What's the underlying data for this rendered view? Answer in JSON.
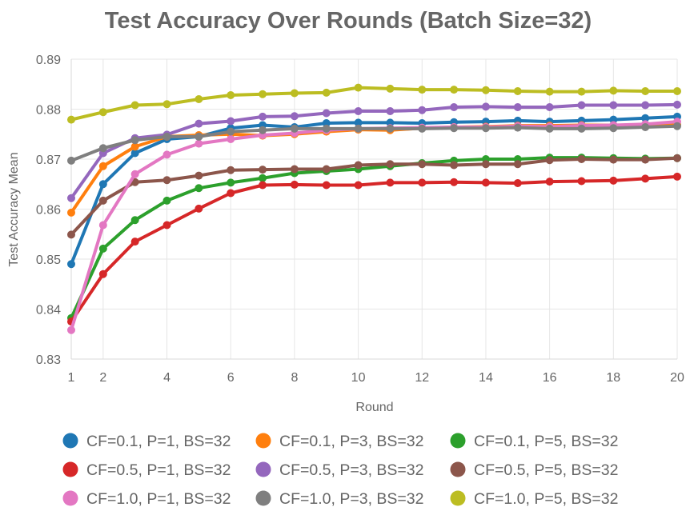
{
  "chart_data": {
    "type": "line",
    "title": "Test Accuracy Over Rounds (Batch Size=32)",
    "xlabel": "Round",
    "ylabel": "Test Accuracy Mean",
    "xlim": [
      1,
      20
    ],
    "ylim": [
      0.83,
      0.89
    ],
    "xticks": [
      1,
      2,
      4,
      6,
      8,
      10,
      12,
      14,
      16,
      18,
      20
    ],
    "yticks": [
      "0.83",
      "0.84",
      "0.85",
      "0.86",
      "0.87",
      "0.88",
      "0.89"
    ],
    "grid": true,
    "legend_position": "bottom",
    "x": [
      1,
      2,
      3,
      4,
      5,
      6,
      7,
      8,
      9,
      10,
      11,
      12,
      13,
      14,
      15,
      16,
      17,
      18,
      19,
      20
    ],
    "series": [
      {
        "name": "CF=0.1, P=1, BS=32",
        "color": "#1f77b4",
        "values": [
          0.849,
          0.865,
          0.8712,
          0.874,
          0.8745,
          0.8762,
          0.8768,
          0.8764,
          0.8772,
          0.8773,
          0.8773,
          0.8772,
          0.8774,
          0.8775,
          0.8777,
          0.8775,
          0.8777,
          0.8779,
          0.8782,
          0.8785
        ]
      },
      {
        "name": "CF=0.1, P=3, BS=32",
        "color": "#ff7f0e",
        "values": [
          0.8593,
          0.8686,
          0.8725,
          0.8745,
          0.8748,
          0.875,
          0.8747,
          0.875,
          0.8755,
          0.8759,
          0.8758,
          0.8762,
          0.8764,
          0.8765,
          0.8767,
          0.8767,
          0.8768,
          0.8768,
          0.8768,
          0.8769
        ]
      },
      {
        "name": "CF=0.1, P=5, BS=32",
        "color": "#2ca02c",
        "values": [
          0.8382,
          0.8521,
          0.8578,
          0.8617,
          0.8642,
          0.8653,
          0.8662,
          0.8672,
          0.8676,
          0.868,
          0.8686,
          0.8692,
          0.8697,
          0.87,
          0.87,
          0.8703,
          0.8703,
          0.8702,
          0.8701,
          0.8702
        ]
      },
      {
        "name": "CF=0.5, P=1, BS=32",
        "color": "#d62728",
        "values": [
          0.8375,
          0.847,
          0.8535,
          0.8568,
          0.8601,
          0.8632,
          0.8648,
          0.8649,
          0.8648,
          0.8648,
          0.8653,
          0.8653,
          0.8654,
          0.8653,
          0.8652,
          0.8655,
          0.8656,
          0.8657,
          0.8661,
          0.8665
        ]
      },
      {
        "name": "CF=0.5, P=3, BS=32",
        "color": "#9467bd",
        "values": [
          0.8622,
          0.8712,
          0.8742,
          0.8749,
          0.8771,
          0.8776,
          0.8785,
          0.8786,
          0.8792,
          0.8796,
          0.8796,
          0.8798,
          0.8804,
          0.8805,
          0.8804,
          0.8804,
          0.8808,
          0.8808,
          0.8808,
          0.8809
        ]
      },
      {
        "name": "CF=0.5, P=5, BS=32",
        "color": "#8c564b",
        "values": [
          0.8549,
          0.8617,
          0.8654,
          0.8658,
          0.8667,
          0.8678,
          0.8679,
          0.868,
          0.868,
          0.8688,
          0.869,
          0.869,
          0.8688,
          0.869,
          0.869,
          0.8698,
          0.87,
          0.8699,
          0.8699,
          0.8702
        ]
      },
      {
        "name": "CF=1.0, P=1, BS=32",
        "color": "#e377c2",
        "values": [
          0.8358,
          0.8568,
          0.867,
          0.8709,
          0.8731,
          0.874,
          0.8748,
          0.8752,
          0.8758,
          0.8761,
          0.8762,
          0.8763,
          0.8764,
          0.8764,
          0.8766,
          0.8765,
          0.8767,
          0.8768,
          0.877,
          0.8775
        ]
      },
      {
        "name": "CF=1.0, P=3, BS=32",
        "color": "#7f7f7f",
        "values": [
          0.8697,
          0.8722,
          0.8738,
          0.8745,
          0.8745,
          0.8755,
          0.8758,
          0.8761,
          0.8761,
          0.8761,
          0.8761,
          0.8761,
          0.8762,
          0.8762,
          0.8763,
          0.8761,
          0.8761,
          0.8762,
          0.8764,
          0.8766
        ]
      },
      {
        "name": "CF=1.0, P=5, BS=32",
        "color": "#bcbd22",
        "values": [
          0.8779,
          0.8794,
          0.8808,
          0.881,
          0.882,
          0.8828,
          0.883,
          0.8832,
          0.8833,
          0.8843,
          0.8841,
          0.8839,
          0.8839,
          0.8838,
          0.8836,
          0.8835,
          0.8835,
          0.8837,
          0.8836,
          0.8836
        ]
      }
    ]
  }
}
